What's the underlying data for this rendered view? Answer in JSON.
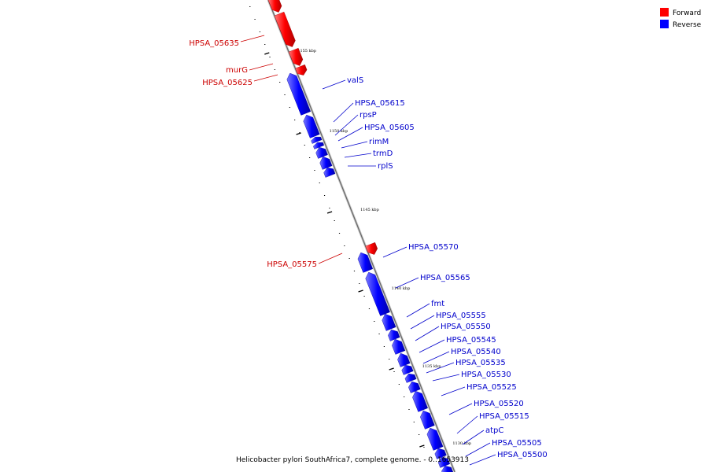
{
  "legend": {
    "forward_label": "Forward",
    "reverse_label": "Reverse",
    "forward_color": "#ff0000",
    "reverse_color": "#0000ff"
  },
  "caption": "Helicobacter pylori SouthAfrica7, complete genome. - 0..1653913",
  "ticks": [
    {
      "kbp": 1155,
      "label": "1155 kbp"
    },
    {
      "kbp": 1150,
      "label": "1150 kbp"
    },
    {
      "kbp": 1145,
      "label": "1145 kbp"
    },
    {
      "kbp": 1140,
      "label": "1140 kbp"
    },
    {
      "kbp": 1135,
      "label": "1135 kbp"
    },
    {
      "kbp": 1130,
      "label": "1130 kbp"
    }
  ],
  "genes": {
    "forward": [
      "HPSA_05635",
      "murG",
      "HPSA_05625",
      "HPSA_05575"
    ],
    "reverse": [
      "valS",
      "HPSA_05615",
      "rpsP",
      "HPSA_05605",
      "rimM",
      "trmD",
      "rplS",
      "HPSA_05570",
      "HPSA_05565",
      "fmt",
      "HPSA_05555",
      "HPSA_05550",
      "HPSA_05545",
      "HPSA_05540",
      "HPSA_05535",
      "HPSA_05530",
      "HPSA_05525",
      "HPSA_05520",
      "HPSA_05515",
      "atpC",
      "HPSA_05505",
      "HPSA_05500"
    ]
  }
}
